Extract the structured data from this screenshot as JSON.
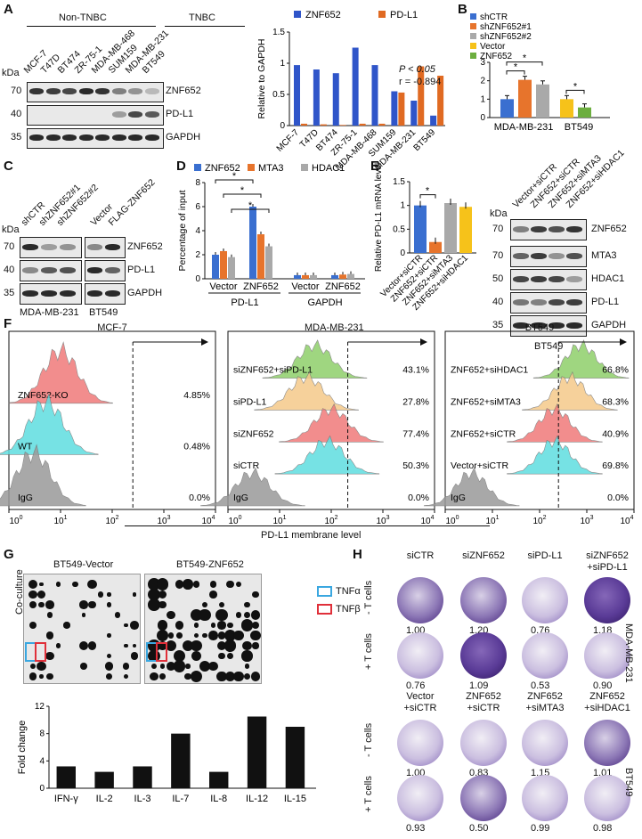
{
  "panelA": {
    "label": "A",
    "group_nontnbc": "Non-TNBC",
    "group_tnbc": "TNBC",
    "lanes": [
      "MCF-7",
      "T47D",
      "BT474",
      "ZR-75-1",
      "MDA-MB-468",
      "SUM159",
      "MDA-MB-231",
      "BT549"
    ],
    "kda": "kDa",
    "blot_rows": [
      {
        "name": "ZNF652",
        "marker": "70"
      },
      {
        "name": "PD-L1",
        "marker": "40"
      },
      {
        "name": "GAPDH",
        "marker": "35"
      }
    ],
    "stats_p": "P < 0.05",
    "stats_r": "r = -0.894"
  },
  "panelB": {
    "label": "B",
    "xlabels": [
      "MDA-MB-231",
      "BT549"
    ],
    "star": "*"
  },
  "panelC": {
    "label": "C",
    "kda": "kDa",
    "lanes": [
      "shCTR",
      "shZNF652#1",
      "shZNF652#2",
      "Vector",
      "FLAG-ZNF652"
    ],
    "rows": [
      {
        "name": "ZNF652",
        "marker": "70"
      },
      {
        "name": "PD-L1",
        "marker": "40"
      },
      {
        "name": "GAPDH",
        "marker": "35"
      }
    ],
    "cells": [
      "MDA-MB-231",
      "BT549"
    ]
  },
  "panelD": {
    "label": "D",
    "group_labels": [
      "PD-L1",
      "GAPDH"
    ],
    "star": "*"
  },
  "panelE": {
    "label": "E",
    "kda": "kDa",
    "lanes": [
      "Vector+siCTR",
      "ZNF652+siCTR",
      "ZNF652+siMTA3",
      "ZNF652+siHDAC1"
    ],
    "rows": [
      {
        "name": "ZNF652",
        "marker": "70"
      },
      {
        "name": "MTA3",
        "marker": "70"
      },
      {
        "name": "HDAC1",
        "marker": "50"
      },
      {
        "name": "PD-L1",
        "marker": "40"
      },
      {
        "name": "GAPDH",
        "marker": "35"
      }
    ],
    "cell": "BT549",
    "star": "*"
  },
  "panelF": {
    "label": "F",
    "xaxis": "PD-L1 membrane level",
    "ticks": [
      "10",
      "10",
      "10",
      "10",
      "10"
    ],
    "exps": [
      "0",
      "1",
      "2",
      "3",
      "4"
    ],
    "plots": [
      {
        "title": "MCF-7",
        "rows": [
          {
            "name": "ZNF652-KO",
            "pct": "4.85%",
            "color": "#f07a7a"
          },
          {
            "name": "WT",
            "pct": "0.48%",
            "color": "#5fdde0"
          },
          {
            "name": "IgG",
            "pct": "0.0%",
            "color": "#9a9a9a"
          }
        ]
      },
      {
        "title": "MDA-MB-231",
        "rows": [
          {
            "name": "siZNF652+siPD-L1",
            "pct": "43.1%",
            "color": "#8fd06a"
          },
          {
            "name": "siPD-L1",
            "pct": "27.8%",
            "color": "#f5c98a"
          },
          {
            "name": "siZNF652",
            "pct": "77.4%",
            "color": "#f07a7a"
          },
          {
            "name": "siCTR",
            "pct": "50.3%",
            "color": "#5fdde0"
          },
          {
            "name": "IgG",
            "pct": "0.0%",
            "color": "#9a9a9a"
          }
        ]
      },
      {
        "title": "BT549",
        "rows": [
          {
            "name": "ZNF652+siHDAC1",
            "pct": "66.8%",
            "color": "#8fd06a"
          },
          {
            "name": "ZNF652+siMTA3",
            "pct": "68.3%",
            "color": "#f5c98a"
          },
          {
            "name": "ZNF652+siCTR",
            "pct": "40.9%",
            "color": "#f07a7a"
          },
          {
            "name": "Vector+siCTR",
            "pct": "69.8%",
            "color": "#5fdde0"
          },
          {
            "name": "IgG",
            "pct": "0.0%",
            "color": "#9a9a9a"
          }
        ]
      }
    ]
  },
  "panelG": {
    "label": "G",
    "arrays": [
      "BT549-Vector",
      "BT549-ZNF652"
    ],
    "ylabel_array": "Co-culture",
    "legend": [
      {
        "name": "TNFα",
        "color": "#3aa7e0"
      },
      {
        "name": "TNFβ",
        "color": "#e0303a"
      }
    ]
  },
  "panelH": {
    "label": "H",
    "top_cols": [
      "siCTR",
      "siZNF652",
      "siPD-L1",
      "siZNF652\n+siPD-L1"
    ],
    "top_cell": "MDA-MB-231",
    "top_minus": [
      "1.00",
      "1.20",
      "0.76",
      "1.18"
    ],
    "top_plus": [
      "0.76",
      "1.09",
      "0.53",
      "0.90"
    ],
    "bot_cols": [
      "Vector\n+siCTR",
      "ZNF652\n+siCTR",
      "ZNF652\n+siMTA3",
      "ZNF652\n+siHDAC1"
    ],
    "bot_cell": "BT549",
    "bot_minus": [
      "1.00",
      "0.83",
      "1.15",
      "1.01"
    ],
    "bot_plus": [
      "0.93",
      "0.50",
      "0.99",
      "0.98"
    ],
    "row_minus": "- T cells",
    "row_plus": "+ T cells"
  },
  "chart_data": [
    {
      "id": "A-bar",
      "type": "bar",
      "categories": [
        "MCF-7",
        "T47D",
        "BT474",
        "ZR-75-1",
        "MDA-MB-468",
        "SUM159",
        "MDA-MB-231",
        "BT549"
      ],
      "series": [
        {
          "name": "ZNF652",
          "values": [
            0.97,
            0.9,
            0.84,
            1.25,
            0.97,
            0.55,
            0.4,
            0.16
          ],
          "color": "#2f55c9"
        },
        {
          "name": "PD-L1",
          "values": [
            0.03,
            0.02,
            0.01,
            0.03,
            0.03,
            0.53,
            0.95,
            0.8
          ],
          "color": "#e06a22"
        }
      ],
      "ylabel": "Relative to GAPDH",
      "ylim": [
        0,
        1.5
      ],
      "yticks": [
        "0",
        "0.5",
        "1",
        "1.5"
      ]
    },
    {
      "id": "B-bar",
      "type": "bar",
      "categories": [
        "shCTR",
        "shZNF652#1",
        "shZNF652#2",
        "Vector",
        "ZNF652"
      ],
      "series": [
        {
          "name": "value",
          "values": [
            1.0,
            2.05,
            1.8,
            1.0,
            0.55
          ]
        }
      ],
      "colors": [
        "#3a6fd0",
        "#e7742c",
        "#a9a9a9",
        "#f6c21a",
        "#6cae3f"
      ],
      "legend": [
        "shCTR",
        "shZNF652#1",
        "shZNF652#2",
        "Vector",
        "ZNF652"
      ],
      "ylim": [
        0,
        3
      ],
      "yticks": [
        "0",
        "1",
        "2",
        "3"
      ]
    },
    {
      "id": "D-bar",
      "type": "bar",
      "categories": [
        "Vector",
        "ZNF652",
        "Vector",
        "ZNF652"
      ],
      "series": [
        {
          "name": "ZNF652",
          "values": [
            2.0,
            6.0,
            0.3,
            0.3
          ],
          "color": "#3a6fd0"
        },
        {
          "name": "MTA3",
          "values": [
            2.3,
            3.7,
            0.3,
            0.35
          ],
          "color": "#e7742c"
        },
        {
          "name": "HDAC1",
          "values": [
            1.8,
            2.7,
            0.3,
            0.4
          ],
          "color": "#a9a9a9"
        }
      ],
      "ylabel": "Percentage of input",
      "ylim": [
        0,
        8
      ],
      "yticks": [
        "0",
        "2",
        "4",
        "6",
        "8"
      ]
    },
    {
      "id": "E-bar",
      "type": "bar",
      "categories": [
        "Vector+siCTR",
        "ZNF652+siCTR",
        "ZNF652+siMTA3",
        "ZNF652+siHDAC1"
      ],
      "series": [
        {
          "name": "value",
          "values": [
            1.0,
            0.23,
            1.05,
            0.97
          ]
        }
      ],
      "colors": [
        "#3a6fd0",
        "#e7742c",
        "#a9a9a9",
        "#f6c21a"
      ],
      "ylabel": "Relative PD-L1 mRNA level",
      "ylim": [
        0,
        1.5
      ],
      "yticks": [
        "0",
        "0.5",
        "1",
        "1.5"
      ]
    },
    {
      "id": "G-bar",
      "type": "bar",
      "categories": [
        "IFN-γ",
        "IL-2",
        "IL-3",
        "IL-7",
        "IL-8",
        "IL-12",
        "IL-15"
      ],
      "series": [
        {
          "name": "Fold change",
          "values": [
            3.2,
            2.4,
            3.2,
            8.0,
            2.4,
            10.5,
            9.0
          ]
        }
      ],
      "ylabel": "Fold change",
      "ylim": [
        0,
        12
      ],
      "yticks": [
        "0",
        "4",
        "8",
        "12"
      ]
    }
  ]
}
